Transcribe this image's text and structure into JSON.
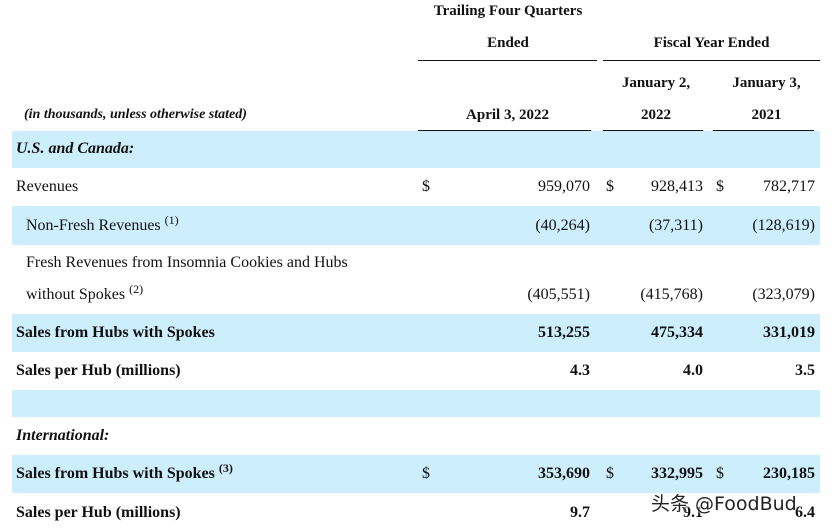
{
  "header": {
    "group_1": [
      "Trailing Four Quarters",
      "Ended"
    ],
    "group_2": "Fiscal Year Ended",
    "units_note": "(in thousands, unless otherwise stated)",
    "columns": [
      [
        "April 3, 2022"
      ],
      [
        "January 2,",
        "2022"
      ],
      [
        "January 3,",
        "2021"
      ]
    ]
  },
  "rows": [
    {
      "label": [
        "U.S. and Canada:"
      ],
      "style": "section",
      "shaded": true
    },
    {
      "label": [
        "Revenues"
      ],
      "style": "plain",
      "shaded": false,
      "cells": [
        {
          "sign": "$",
          "value": "959,070"
        },
        {
          "sign": "$",
          "value": "928,413"
        },
        {
          "sign": "$",
          "value": "782,717"
        }
      ]
    },
    {
      "label": [
        "Non-Fresh Revenues"
      ],
      "note": "(1)",
      "style": "indent",
      "shaded": true,
      "cells": [
        {
          "value": "(40,264)"
        },
        {
          "value": "(37,311)"
        },
        {
          "value": "(128,619)"
        }
      ]
    },
    {
      "label": [
        "Fresh Revenues from Insomnia Cookies and Hubs",
        "without Spokes"
      ],
      "note": "(2)",
      "style": "indent",
      "shaded": false,
      "cells": [
        {
          "value": "(405,551)"
        },
        {
          "value": "(415,768)"
        },
        {
          "value": "(323,079)"
        }
      ]
    },
    {
      "label": [
        "Sales from Hubs with Spokes"
      ],
      "style": "bold",
      "shaded": true,
      "cells": [
        {
          "value": "513,255"
        },
        {
          "value": "475,334"
        },
        {
          "value": "331,019"
        }
      ]
    },
    {
      "label": [
        "Sales per Hub (millions)"
      ],
      "style": "bold",
      "shaded": false,
      "cells": [
        {
          "value": "4.3"
        },
        {
          "value": "4.0"
        },
        {
          "value": "3.5"
        }
      ]
    },
    {
      "label": [],
      "style": "plain",
      "shaded": true
    },
    {
      "label": [
        "International:"
      ],
      "style": "section",
      "shaded": false
    },
    {
      "label": [
        "Sales from Hubs with Spokes"
      ],
      "note": "(3)",
      "style": "bold",
      "shaded": true,
      "cells": [
        {
          "sign": "$",
          "value": "353,690"
        },
        {
          "sign": "$",
          "value": "332,995"
        },
        {
          "sign": "$",
          "value": "230,185"
        }
      ]
    },
    {
      "label": [
        "Sales per Hub (millions)"
      ],
      "style": "bold",
      "shaded": false,
      "cells": [
        {
          "value": "9.7"
        },
        {
          "value": "9.1"
        },
        {
          "value": "6.4"
        }
      ]
    }
  ],
  "watermark": "头条 @FoodBud"
}
